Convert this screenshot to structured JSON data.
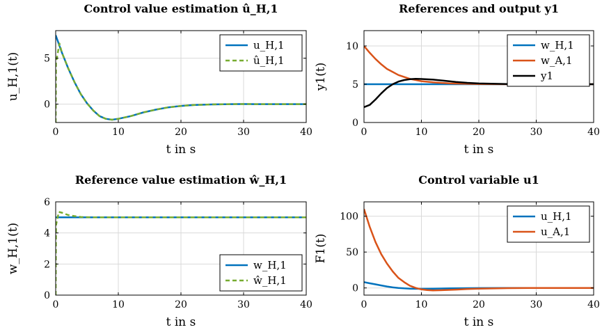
{
  "chart_data": [
    {
      "type": "line",
      "title": "Control value estimation û_H,1",
      "xlabel": "t in s",
      "ylabel": "u_H,1(t)",
      "xlim": [
        0,
        40
      ],
      "ylim": [
        -2,
        8
      ],
      "xticks": [
        "0",
        "10",
        "20",
        "30",
        "40"
      ],
      "xtick_values": [
        0,
        10,
        20,
        30,
        40
      ],
      "yticks": [
        "0",
        "5"
      ],
      "ytick_values": [
        0,
        5
      ],
      "legend_position": "top-right",
      "series": [
        {
          "name": "u_H,1",
          "color": "#0072bd",
          "style": "solid",
          "x": [
            0,
            1,
            2,
            3,
            4,
            5,
            6,
            7,
            8,
            9,
            10,
            12,
            14,
            16,
            18,
            20,
            22,
            25,
            28,
            30,
            32,
            35,
            40
          ],
          "y": [
            7.5,
            5.6,
            3.9,
            2.4,
            1.1,
            0.1,
            -0.7,
            -1.3,
            -1.6,
            -1.7,
            -1.6,
            -1.3,
            -0.9,
            -0.6,
            -0.35,
            -0.2,
            -0.1,
            -0.03,
            0,
            0.01,
            0,
            0,
            0
          ]
        },
        {
          "name": "û_H,1",
          "color": "#77ac30",
          "style": "dashed",
          "x": [
            0,
            0.05,
            0.6,
            1,
            2,
            3,
            4,
            5,
            6,
            7,
            8,
            9,
            10,
            12,
            14,
            16,
            18,
            20,
            22,
            25,
            28,
            30,
            32,
            35,
            40
          ],
          "y": [
            -2,
            4.5,
            6.6,
            5.6,
            3.9,
            2.4,
            1.1,
            0.1,
            -0.7,
            -1.3,
            -1.6,
            -1.7,
            -1.6,
            -1.3,
            -0.9,
            -0.6,
            -0.35,
            -0.2,
            -0.1,
            -0.03,
            0,
            0.01,
            0,
            0,
            0
          ]
        }
      ]
    },
    {
      "type": "line",
      "title": "References and output y1",
      "xlabel": "t in s",
      "ylabel": "y1(t)",
      "xlim": [
        0,
        40
      ],
      "ylim": [
        0,
        12
      ],
      "xticks": [
        "0",
        "10",
        "20",
        "30",
        "40"
      ],
      "xtick_values": [
        0,
        10,
        20,
        30,
        40
      ],
      "yticks": [
        "0",
        "5",
        "10"
      ],
      "ytick_values": [
        0,
        5,
        10
      ],
      "legend_position": "top-right",
      "series": [
        {
          "name": "w_H,1",
          "color": "#0072bd",
          "style": "solid",
          "x": [
            0,
            40
          ],
          "y": [
            5,
            5
          ]
        },
        {
          "name": "w_A,1",
          "color": "#d95319",
          "style": "solid",
          "x": [
            0,
            1,
            2,
            3,
            4,
            5,
            6,
            8,
            10,
            12,
            15,
            20,
            25,
            30,
            40
          ],
          "y": [
            10,
            9.1,
            8.3,
            7.6,
            7.0,
            6.6,
            6.2,
            5.7,
            5.4,
            5.25,
            5.1,
            5.02,
            5.0,
            5.0,
            5.0
          ]
        },
        {
          "name": "y1",
          "color": "#000000",
          "style": "solid",
          "x": [
            0,
            1,
            2,
            3,
            4,
            5,
            6,
            7,
            8,
            9,
            10,
            12,
            14,
            16,
            18,
            20,
            25,
            30,
            35,
            40
          ],
          "y": [
            2,
            2.3,
            3.0,
            3.8,
            4.5,
            5.0,
            5.35,
            5.55,
            5.65,
            5.7,
            5.68,
            5.6,
            5.45,
            5.3,
            5.18,
            5.1,
            5.02,
            5.0,
            5.0,
            5.0
          ]
        }
      ]
    },
    {
      "type": "line",
      "title": "Reference value estimation ŵ_H,1",
      "xlabel": "t in s",
      "ylabel": "w_H,1(t)",
      "xlim": [
        0,
        40
      ],
      "ylim": [
        0,
        6
      ],
      "xticks": [
        "0",
        "10",
        "20",
        "30",
        "40"
      ],
      "xtick_values": [
        0,
        10,
        20,
        30,
        40
      ],
      "yticks": [
        "0",
        "2",
        "4",
        "6"
      ],
      "ytick_values": [
        0,
        2,
        4,
        6
      ],
      "legend_position": "bottom-right",
      "series": [
        {
          "name": "w_H,1",
          "color": "#0072bd",
          "style": "solid",
          "x": [
            0,
            40
          ],
          "y": [
            5,
            5
          ]
        },
        {
          "name": "ŵ_H,1",
          "color": "#77ac30",
          "style": "dashed",
          "x": [
            0,
            0.05,
            0.5,
            1,
            2,
            3,
            4,
            6,
            8,
            40
          ],
          "y": [
            0,
            4.5,
            5.35,
            5.3,
            5.15,
            5.08,
            5.03,
            5.0,
            5.0,
            5.0
          ]
        }
      ]
    },
    {
      "type": "line",
      "title": "Control variable u1",
      "xlabel": "t in s",
      "ylabel": "F1(t)",
      "xlim": [
        0,
        40
      ],
      "ylim": [
        -10,
        120
      ],
      "xticks": [
        "0",
        "10",
        "20",
        "30",
        "40"
      ],
      "xtick_values": [
        0,
        10,
        20,
        30,
        40
      ],
      "yticks": [
        "0",
        "50",
        "100"
      ],
      "ytick_values": [
        0,
        50,
        100
      ],
      "legend_position": "top-right",
      "series": [
        {
          "name": "u_H,1",
          "color": "#0072bd",
          "style": "solid",
          "x": [
            0,
            1,
            2,
            3,
            4,
            5,
            6,
            7,
            8,
            9,
            10,
            12,
            15,
            20,
            25,
            30,
            40
          ],
          "y": [
            8,
            6.5,
            5,
            3.5,
            2,
            0.8,
            0,
            -0.6,
            -1,
            -1.2,
            -1.2,
            -1.0,
            -0.6,
            -0.2,
            0,
            0,
            0
          ]
        },
        {
          "name": "u_A,1",
          "color": "#d95319",
          "style": "solid",
          "x": [
            0,
            1,
            2,
            3,
            4,
            5,
            6,
            7,
            8,
            9,
            10,
            11,
            12,
            14,
            16,
            18,
            20,
            25,
            30,
            40
          ],
          "y": [
            110,
            85,
            64,
            47,
            34,
            23,
            14,
            8,
            3,
            0,
            -2,
            -3,
            -3.5,
            -3,
            -2.3,
            -1.5,
            -1,
            -0.3,
            0,
            0
          ]
        }
      ]
    }
  ]
}
